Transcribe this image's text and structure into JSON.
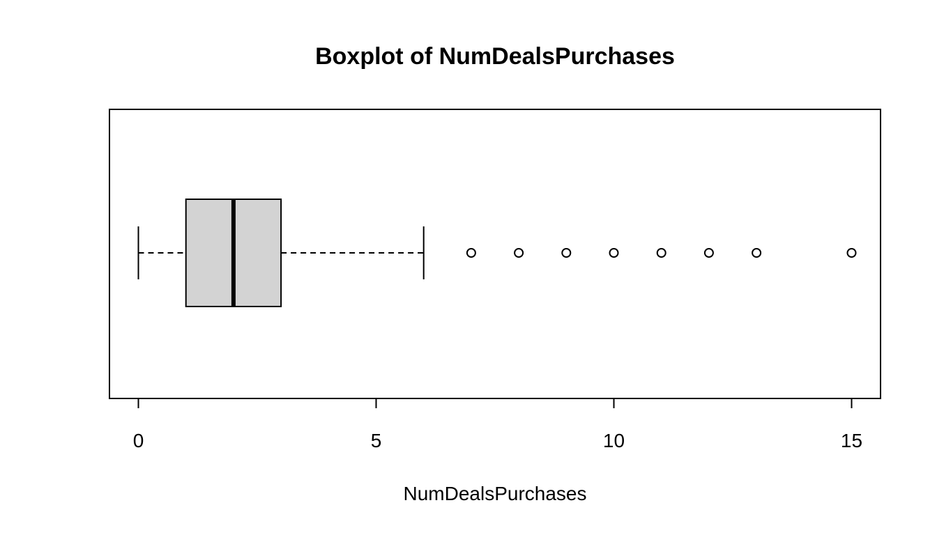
{
  "chart_data": {
    "type": "boxplot",
    "orientation": "horizontal",
    "title": "Boxplot of NumDealsPurchases",
    "xlabel": "NumDealsPurchases",
    "ylabel": "",
    "xlim": [
      -0.6,
      15.6
    ],
    "x_ticks": [
      0,
      5,
      10,
      15
    ],
    "x_tick_labels": [
      "0",
      "5",
      "10",
      "15"
    ],
    "grid": false,
    "box": {
      "whisker_low": 0,
      "q1": 1,
      "median": 2,
      "q3": 3,
      "whisker_high": 6,
      "fill": "#d3d3d3"
    },
    "outliers": [
      7,
      8,
      9,
      10,
      11,
      12,
      13,
      15
    ]
  }
}
